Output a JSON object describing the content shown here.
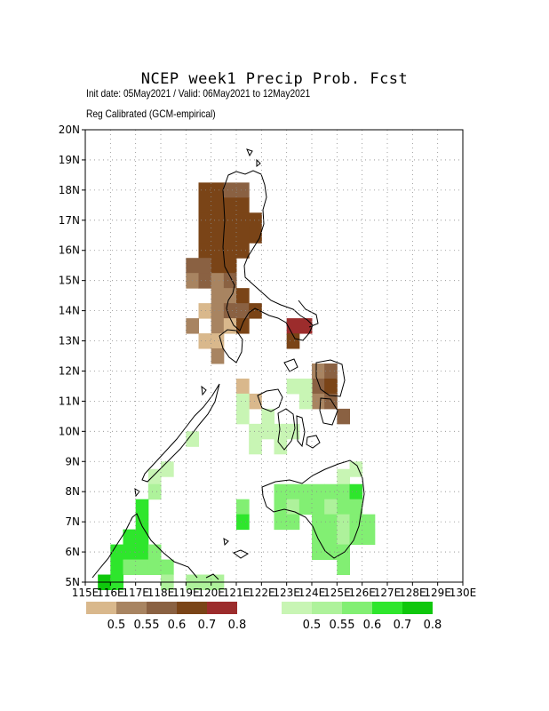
{
  "header": {
    "title": "NCEP week1 Precip Prob. Fcst",
    "subtitle": "Init date: 05May2021 / Valid: 06May2021 to 12May2021",
    "note": "Reg Calibrated (GCM-empirical)"
  },
  "map": {
    "lon_range": [
      115,
      130
    ],
    "lat_range": [
      5,
      20
    ],
    "grid_step": 1,
    "cell_size_deg": 0.5,
    "lat_labels": [
      "5N",
      "6N",
      "7N",
      "8N",
      "9N",
      "10N",
      "11N",
      "12N",
      "13N",
      "14N",
      "15N",
      "16N",
      "17N",
      "18N",
      "19N",
      "20N"
    ],
    "lon_labels": [
      "115E",
      "116E",
      "117E",
      "118E",
      "119E",
      "120E",
      "121E",
      "122E",
      "123E",
      "124E",
      "125E",
      "126E",
      "127E",
      "128E",
      "129E",
      "130E"
    ],
    "dry_colors": [
      "#d9b88c",
      "#a88461",
      "#8a6142",
      "#7a4417",
      "#9c2c2c"
    ],
    "wet_colors": [
      "#c8f5b4",
      "#aef29b",
      "#82ef73",
      "#2ee62c",
      "#0fc70c"
    ],
    "dry_cells": [
      [
        119.75,
        18.0,
        3
      ],
      [
        120.25,
        18.0,
        3
      ],
      [
        120.75,
        18.0,
        2
      ],
      [
        121.25,
        18.0,
        2
      ],
      [
        119.75,
        17.5,
        3
      ],
      [
        120.25,
        17.5,
        3
      ],
      [
        120.75,
        17.5,
        3
      ],
      [
        121.25,
        17.5,
        3
      ],
      [
        119.75,
        17.0,
        3
      ],
      [
        120.25,
        17.0,
        3
      ],
      [
        120.75,
        17.0,
        3
      ],
      [
        121.25,
        17.0,
        3
      ],
      [
        121.75,
        17.0,
        3
      ],
      [
        119.75,
        16.5,
        3
      ],
      [
        120.25,
        16.5,
        3
      ],
      [
        120.75,
        16.5,
        3
      ],
      [
        121.25,
        16.5,
        3
      ],
      [
        121.75,
        16.5,
        3
      ],
      [
        119.75,
        16.0,
        3
      ],
      [
        120.25,
        16.0,
        3
      ],
      [
        120.75,
        16.0,
        3
      ],
      [
        121.25,
        16.0,
        3
      ],
      [
        119.25,
        15.5,
        2
      ],
      [
        119.75,
        15.5,
        2
      ],
      [
        120.25,
        15.5,
        3
      ],
      [
        120.75,
        15.5,
        3
      ],
      [
        119.25,
        15.0,
        1
      ],
      [
        119.75,
        15.0,
        2
      ],
      [
        120.25,
        15.0,
        1
      ],
      [
        120.75,
        15.0,
        2
      ],
      [
        120.25,
        14.5,
        1
      ],
      [
        120.75,
        14.5,
        1
      ],
      [
        121.25,
        14.5,
        3
      ],
      [
        119.75,
        14.0,
        0
      ],
      [
        120.25,
        14.0,
        1
      ],
      [
        120.75,
        14.0,
        2
      ],
      [
        121.25,
        14.0,
        2
      ],
      [
        121.75,
        14.0,
        3
      ],
      [
        119.25,
        13.5,
        1
      ],
      [
        120.25,
        13.5,
        1
      ],
      [
        120.75,
        13.5,
        0
      ],
      [
        121.25,
        13.5,
        3
      ],
      [
        123.25,
        13.5,
        4
      ],
      [
        123.75,
        13.5,
        4
      ],
      [
        119.75,
        13.0,
        0
      ],
      [
        120.25,
        13.0,
        0
      ],
      [
        123.25,
        13.0,
        3
      ],
      [
        120.25,
        12.5,
        1
      ],
      [
        124.25,
        12.0,
        1
      ],
      [
        124.75,
        12.0,
        2
      ],
      [
        124.25,
        11.5,
        2
      ],
      [
        124.75,
        11.5,
        3
      ],
      [
        121.25,
        11.5,
        0
      ],
      [
        121.75,
        11.0,
        0
      ],
      [
        124.25,
        11.0,
        1
      ],
      [
        124.75,
        11.0,
        2
      ],
      [
        125.25,
        10.5,
        2
      ]
    ],
    "wet_cells": [
      [
        121.25,
        11.0,
        0
      ],
      [
        121.25,
        10.5,
        0
      ],
      [
        122.25,
        10.5,
        0
      ],
      [
        121.75,
        10.0,
        0
      ],
      [
        122.25,
        10.0,
        0
      ],
      [
        122.75,
        10.0,
        0
      ],
      [
        121.75,
        9.5,
        0
      ],
      [
        122.75,
        9.5,
        0
      ],
      [
        123.25,
        10.0,
        0
      ],
      [
        123.75,
        11.0,
        0
      ],
      [
        123.75,
        11.5,
        0
      ],
      [
        123.25,
        11.5,
        0
      ],
      [
        119.25,
        9.75,
        0
      ],
      [
        118.25,
        8.75,
        0
      ],
      [
        117.75,
        8.5,
        0
      ],
      [
        117.75,
        8.0,
        1
      ],
      [
        125.75,
        8.75,
        0
      ],
      [
        125.25,
        8.5,
        0
      ],
      [
        122.75,
        8.0,
        2
      ],
      [
        123.25,
        8.0,
        2
      ],
      [
        123.75,
        8.0,
        2
      ],
      [
        124.25,
        8.0,
        2
      ],
      [
        124.75,
        8.0,
        2
      ],
      [
        125.25,
        8.0,
        2
      ],
      [
        125.75,
        8.0,
        3
      ],
      [
        122.75,
        7.5,
        2
      ],
      [
        123.25,
        7.5,
        1
      ],
      [
        123.75,
        7.5,
        2
      ],
      [
        124.25,
        7.5,
        2
      ],
      [
        124.75,
        7.5,
        1
      ],
      [
        125.25,
        7.5,
        2
      ],
      [
        125.75,
        7.5,
        2
      ],
      [
        121.25,
        7.5,
        2
      ],
      [
        121.25,
        7.0,
        3
      ],
      [
        122.75,
        7.0,
        2
      ],
      [
        123.25,
        7.0,
        2
      ],
      [
        124.25,
        7.0,
        2
      ],
      [
        124.75,
        7.0,
        2
      ],
      [
        125.25,
        7.0,
        1
      ],
      [
        125.75,
        7.0,
        2
      ],
      [
        126.25,
        7.0,
        2
      ],
      [
        124.25,
        6.5,
        2
      ],
      [
        124.75,
        6.5,
        2
      ],
      [
        125.25,
        6.5,
        1
      ],
      [
        125.75,
        6.5,
        2
      ],
      [
        126.25,
        6.5,
        2
      ],
      [
        124.25,
        6.0,
        2
      ],
      [
        124.75,
        6.0,
        2
      ],
      [
        125.25,
        6.0,
        2
      ],
      [
        125.25,
        5.5,
        2
      ],
      [
        117.25,
        7.5,
        3
      ],
      [
        117.25,
        7.0,
        3
      ],
      [
        116.75,
        6.5,
        3
      ],
      [
        117.25,
        6.5,
        3
      ],
      [
        116.25,
        6.0,
        3
      ],
      [
        116.75,
        6.0,
        3
      ],
      [
        117.25,
        6.0,
        3
      ],
      [
        117.75,
        6.0,
        2
      ],
      [
        116.25,
        5.5,
        3
      ],
      [
        116.75,
        5.5,
        2
      ],
      [
        117.25,
        5.5,
        2
      ],
      [
        117.75,
        5.5,
        2
      ],
      [
        118.25,
        5.5,
        2
      ],
      [
        115.75,
        5.0,
        4
      ],
      [
        116.25,
        5.0,
        3
      ],
      [
        118.25,
        5.0,
        1
      ],
      [
        119.25,
        5.0,
        1
      ],
      [
        119.75,
        5.0,
        1
      ],
      [
        120.25,
        5.0,
        1
      ]
    ]
  },
  "legend": {
    "dry_labels": [
      "0.5",
      "0.55",
      "0.6",
      "0.7",
      "0.8"
    ],
    "wet_labels": [
      "0.5",
      "0.55",
      "0.6",
      "0.7",
      "0.8"
    ]
  }
}
